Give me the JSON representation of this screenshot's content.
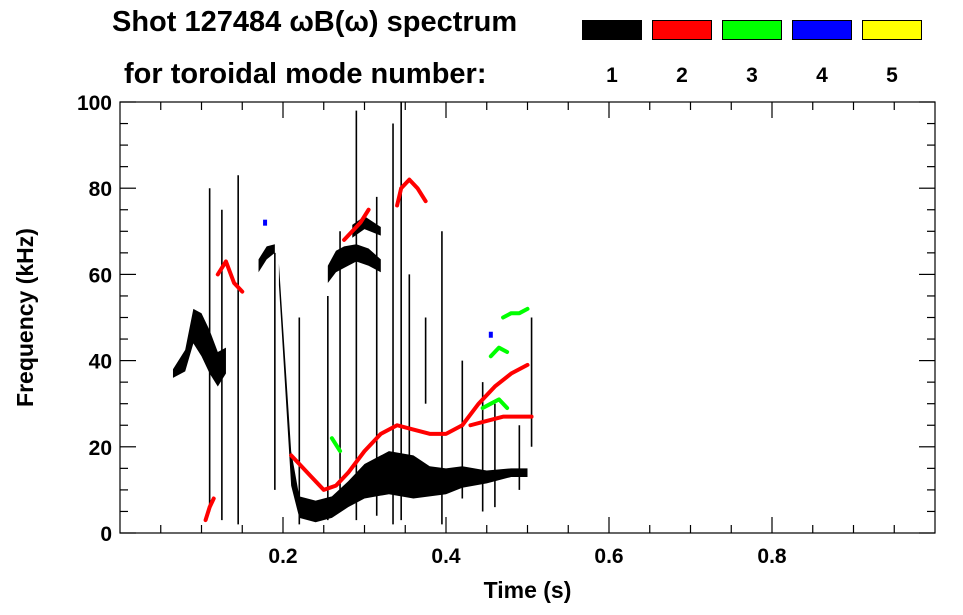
{
  "chart_data": {
    "type": "heatmap",
    "title_line1": "Shot 127484 ωB(ω) spectrum",
    "title_line2": "for toroidal mode number:",
    "xlabel": "Time (s)",
    "ylabel": "Frequency (kHz)",
    "xlim": [
      0.0,
      1.0
    ],
    "ylim": [
      0,
      100
    ],
    "x_ticks": [
      0.2,
      0.4,
      0.6,
      0.8
    ],
    "x_tick_labels": [
      "0.2",
      "0.4",
      "0.6",
      "0.8"
    ],
    "y_ticks": [
      0,
      20,
      40,
      60,
      80,
      100
    ],
    "y_tick_labels": [
      "0",
      "20",
      "40",
      "60",
      "80",
      "100"
    ],
    "legend": [
      {
        "mode": "1",
        "color": "#000000"
      },
      {
        "mode": "2",
        "color": "#ff0000"
      },
      {
        "mode": "3",
        "color": "#00ff00"
      },
      {
        "mode": "4",
        "color": "#0000ff"
      },
      {
        "mode": "5",
        "color": "#ffff00"
      }
    ],
    "features": [
      {
        "mode": "1",
        "kind": "band",
        "points": [
          [
            0.065,
            37,
            2
          ],
          [
            0.08,
            40,
            5
          ],
          [
            0.09,
            48,
            8
          ],
          [
            0.1,
            46,
            10
          ],
          [
            0.11,
            42,
            10
          ],
          [
            0.12,
            38,
            8
          ],
          [
            0.13,
            40,
            6
          ]
        ]
      },
      {
        "mode": "1",
        "kind": "band",
        "points": [
          [
            0.195,
            60,
            5
          ],
          [
            0.21,
            15,
            8
          ],
          [
            0.22,
            6,
            5
          ],
          [
            0.24,
            5,
            5
          ],
          [
            0.26,
            6,
            5
          ],
          [
            0.28,
            9,
            6
          ],
          [
            0.3,
            12,
            8
          ],
          [
            0.33,
            14,
            10
          ],
          [
            0.36,
            13,
            10
          ],
          [
            0.38,
            12,
            7
          ],
          [
            0.4,
            12,
            6
          ],
          [
            0.42,
            13,
            5
          ],
          [
            0.45,
            13,
            3
          ],
          [
            0.48,
            14,
            2
          ],
          [
            0.5,
            14,
            2
          ]
        ]
      },
      {
        "mode": "1",
        "kind": "band",
        "points": [
          [
            0.255,
            60,
            4
          ],
          [
            0.265,
            63,
            5
          ],
          [
            0.275,
            64,
            5
          ],
          [
            0.29,
            65,
            4
          ],
          [
            0.305,
            64,
            4
          ],
          [
            0.32,
            62,
            3
          ]
        ]
      },
      {
        "mode": "1",
        "kind": "band",
        "points": [
          [
            0.17,
            62,
            3
          ],
          [
            0.18,
            65,
            3
          ],
          [
            0.19,
            66,
            2
          ]
        ]
      },
      {
        "mode": "1",
        "kind": "band",
        "points": [
          [
            0.285,
            70,
            3
          ],
          [
            0.3,
            72,
            3
          ],
          [
            0.32,
            70,
            2
          ]
        ]
      },
      {
        "mode": "1",
        "kind": "streak",
        "x": [
          0.11,
          0.125,
          0.145,
          0.19,
          0.22,
          0.255,
          0.27,
          0.29,
          0.315,
          0.335,
          0.345,
          0.355,
          0.375,
          0.395,
          0.42,
          0.445,
          0.46,
          0.49,
          0.505
        ],
        "y0": [
          5,
          3,
          2,
          10,
          2,
          3,
          5,
          3,
          4,
          2,
          3,
          10,
          30,
          2,
          8,
          5,
          6,
          10,
          20
        ],
        "y1": [
          80,
          75,
          83,
          65,
          50,
          55,
          70,
          98,
          78,
          95,
          100,
          60,
          50,
          70,
          40,
          35,
          30,
          25,
          50
        ]
      },
      {
        "mode": "2",
        "kind": "line",
        "points": [
          [
            0.12,
            60
          ],
          [
            0.13,
            63
          ],
          [
            0.14,
            58
          ],
          [
            0.15,
            56
          ]
        ]
      },
      {
        "mode": "2",
        "kind": "line",
        "points": [
          [
            0.21,
            18
          ],
          [
            0.22,
            16
          ],
          [
            0.235,
            13
          ],
          [
            0.25,
            10
          ],
          [
            0.265,
            11
          ],
          [
            0.28,
            14
          ],
          [
            0.3,
            19
          ],
          [
            0.32,
            23
          ],
          [
            0.34,
            25
          ],
          [
            0.36,
            24
          ],
          [
            0.38,
            23
          ],
          [
            0.4,
            23
          ],
          [
            0.42,
            25
          ],
          [
            0.44,
            30
          ],
          [
            0.46,
            34
          ],
          [
            0.48,
            37
          ],
          [
            0.5,
            39
          ]
        ]
      },
      {
        "mode": "2",
        "kind": "line",
        "points": [
          [
            0.43,
            25
          ],
          [
            0.45,
            26
          ],
          [
            0.47,
            27
          ],
          [
            0.49,
            27
          ],
          [
            0.505,
            27
          ]
        ]
      },
      {
        "mode": "2",
        "kind": "line",
        "points": [
          [
            0.275,
            68
          ],
          [
            0.285,
            70
          ],
          [
            0.295,
            72
          ],
          [
            0.305,
            75
          ]
        ]
      },
      {
        "mode": "2",
        "kind": "line",
        "points": [
          [
            0.34,
            76
          ],
          [
            0.345,
            80
          ],
          [
            0.355,
            82
          ],
          [
            0.365,
            80
          ],
          [
            0.375,
            77
          ]
        ]
      },
      {
        "mode": "2",
        "kind": "line",
        "points": [
          [
            0.105,
            3
          ],
          [
            0.11,
            6
          ],
          [
            0.115,
            8
          ]
        ]
      },
      {
        "mode": "3",
        "kind": "line",
        "points": [
          [
            0.445,
            29
          ],
          [
            0.455,
            30
          ],
          [
            0.465,
            31
          ],
          [
            0.475,
            29
          ]
        ]
      },
      {
        "mode": "3",
        "kind": "line",
        "points": [
          [
            0.455,
            41
          ],
          [
            0.465,
            43
          ],
          [
            0.475,
            42
          ]
        ]
      },
      {
        "mode": "3",
        "kind": "line",
        "points": [
          [
            0.47,
            50
          ],
          [
            0.48,
            51
          ],
          [
            0.49,
            51
          ],
          [
            0.5,
            52
          ]
        ]
      },
      {
        "mode": "3",
        "kind": "line",
        "points": [
          [
            0.26,
            22
          ],
          [
            0.27,
            19
          ]
        ]
      },
      {
        "mode": "4",
        "kind": "dot",
        "points": [
          [
            0.178,
            72
          ],
          [
            0.455,
            46
          ]
        ]
      }
    ]
  }
}
